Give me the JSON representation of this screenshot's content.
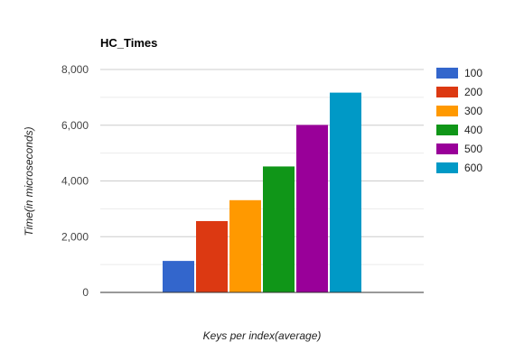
{
  "chart_data": {
    "type": "bar",
    "title": "HC_Times",
    "xlabel": "Keys per index(average)",
    "ylabel": "Time(in microseconds)",
    "ylim": [
      0,
      8000
    ],
    "yticks": [
      0,
      2000,
      4000,
      6000,
      8000
    ],
    "ytick_labels": [
      "0",
      "2,000",
      "4,000",
      "6,000",
      "8,000"
    ],
    "grid": true,
    "legend_position": "right",
    "categories": [
      ""
    ],
    "series": [
      {
        "name": "100",
        "values": [
          1130
        ],
        "color": "#3366cc"
      },
      {
        "name": "200",
        "values": [
          2560
        ],
        "color": "#dc3912"
      },
      {
        "name": "300",
        "values": [
          3310
        ],
        "color": "#ff9900"
      },
      {
        "name": "400",
        "values": [
          4520
        ],
        "color": "#109618"
      },
      {
        "name": "500",
        "values": [
          6010
        ],
        "color": "#990099"
      },
      {
        "name": "600",
        "values": [
          7170
        ],
        "color": "#0099c6"
      }
    ]
  }
}
